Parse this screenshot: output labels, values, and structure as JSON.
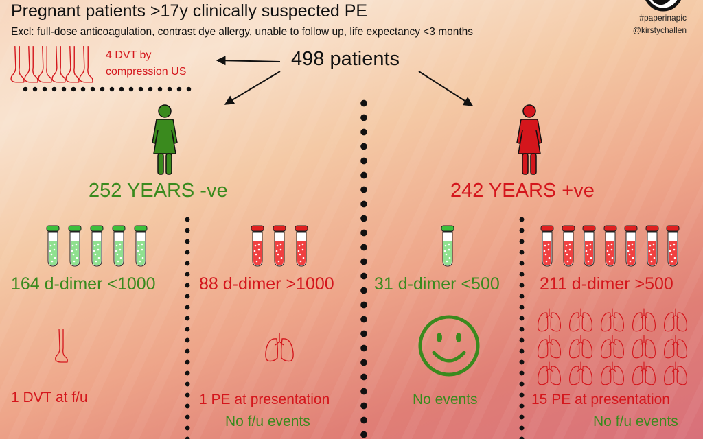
{
  "header": {
    "title": "Pregnant patients >17y clinically suspected PE",
    "exclusion": "Excl: full-dose anticoagulation, contrast dye allergy, unable to follow up, life expectancy <3 months",
    "hashtag": "#paperinapic",
    "author": "@kirstychallen"
  },
  "total": {
    "label": "498 patients"
  },
  "excluded": {
    "label_line1": "4 DVT by",
    "label_line2": "compression US",
    "feet_count": 6
  },
  "groups": {
    "negative": {
      "label": "252 YEARS -ve",
      "color": "#3a8a1e",
      "low": {
        "label": "164 d-dimer <1000",
        "tubes": 5,
        "outcome": "1 DVT at f/u"
      },
      "high": {
        "label": "88 d-dimer >1000",
        "tubes": 3,
        "outcome": "1 PE at presentation",
        "followup": "No f/u events"
      }
    },
    "positive": {
      "label": "242 YEARS +ve",
      "color": "#d4161c",
      "low": {
        "label": "31 d-dimer <500",
        "tubes": 1,
        "outcome": "No events"
      },
      "high": {
        "label": "211 d-dimer >500",
        "tubes": 7,
        "outcome": "15 PE at presentation",
        "followup": "No f/u events",
        "lungs": 15
      }
    }
  },
  "icons": {
    "feet": "foot-icon",
    "woman": "woman-icon",
    "tube": "test-tube-icon",
    "lungs": "lungs-icon",
    "smiley": "smiley-icon",
    "logo": "logo-icon"
  }
}
